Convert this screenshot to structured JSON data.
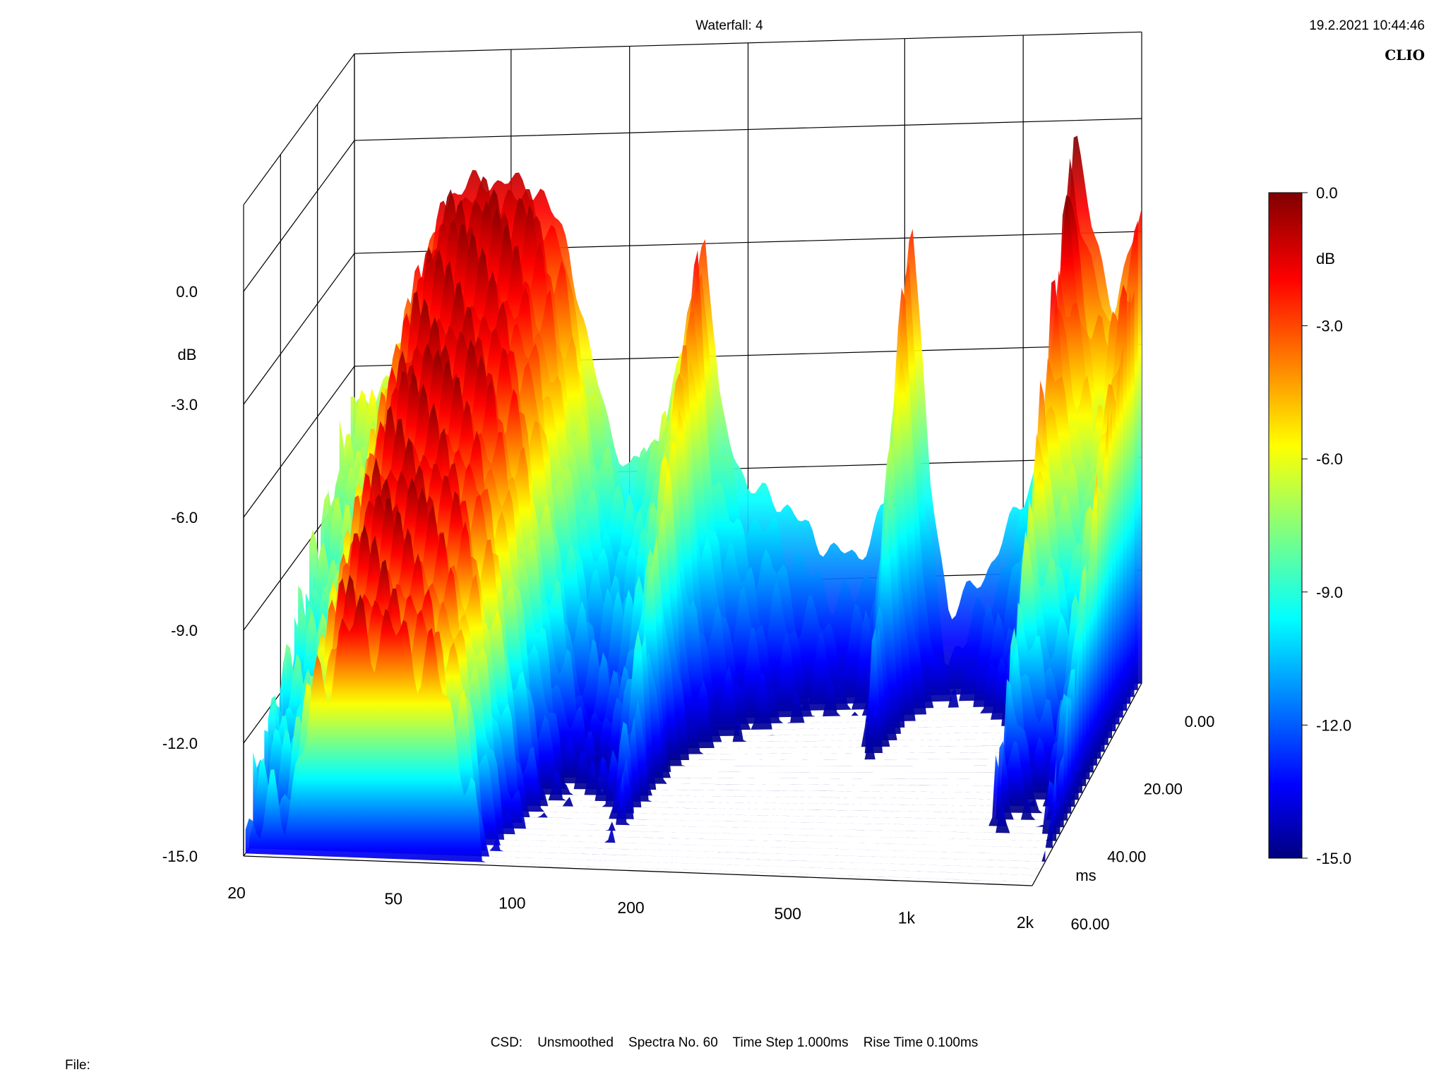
{
  "header": {
    "title": "Waterfall: 4",
    "datetime": "19.2.2021 10:44:46",
    "brand": "CLIO"
  },
  "footer": {
    "settings": "CSD:    Unsmoothed    Spectra No. 60    Time Step 1.000ms    Rise Time 0.100ms",
    "file_label": "File:"
  },
  "chart_data": {
    "type": "waterfall",
    "title": "Waterfall: 4",
    "z_axis": {
      "label": "dB",
      "range": [
        -15.0,
        0.0
      ],
      "ticks": [
        "0.0",
        "-3.0",
        "-6.0",
        "-9.0",
        "-12.0",
        "-15.0"
      ]
    },
    "x_axis": {
      "scale": "log",
      "range": [
        20,
        2000
      ],
      "ticks": [
        {
          "v": 20,
          "label": "20"
        },
        {
          "v": 50,
          "label": "50"
        },
        {
          "v": 100,
          "label": "100"
        },
        {
          "v": 200,
          "label": "200"
        },
        {
          "v": 500,
          "label": "500"
        },
        {
          "v": 1000,
          "label": "1k"
        },
        {
          "v": 2000,
          "label": "2k"
        }
      ]
    },
    "t_axis": {
      "label": "ms",
      "range": [
        0,
        60
      ],
      "ticks": [
        "0.00",
        "20.00",
        "40.00",
        "60.00"
      ]
    },
    "colorbar": {
      "label": "dB",
      "range": [
        -15.0,
        0.0
      ],
      "ticks": [
        "0.0",
        "-3.0",
        "-6.0",
        "-9.0",
        "-12.0",
        "-15.0"
      ],
      "colors": [
        "#000080",
        "#0000ff",
        "#00ffff",
        "#ffff00",
        "#ff0000",
        "#800000"
      ]
    },
    "spectra_count": 60,
    "time_step_ms": 1.0,
    "rise_time_ms": 0.1,
    "smoothing": "Unsmoothed",
    "first_spectrum_db": [
      {
        "f": 20,
        "db": -7.0
      },
      {
        "f": 25,
        "db": -6.5
      },
      {
        "f": 30,
        "db": -3.5
      },
      {
        "f": 35,
        "db": -1.5
      },
      {
        "f": 40,
        "db": -1.2
      },
      {
        "f": 50,
        "db": -1.2
      },
      {
        "f": 60,
        "db": -1.5
      },
      {
        "f": 70,
        "db": -3.0
      },
      {
        "f": 80,
        "db": -6.0
      },
      {
        "f": 90,
        "db": -8.0
      },
      {
        "f": 100,
        "db": -9.0
      },
      {
        "f": 120,
        "db": -8.0
      },
      {
        "f": 140,
        "db": -5.5
      },
      {
        "f": 155,
        "db": -2.5
      },
      {
        "f": 170,
        "db": -7.5
      },
      {
        "f": 200,
        "db": -9.5
      },
      {
        "f": 250,
        "db": -10.0
      },
      {
        "f": 300,
        "db": -11.0
      },
      {
        "f": 380,
        "db": -11.5
      },
      {
        "f": 450,
        "db": -10.0
      },
      {
        "f": 520,
        "db": -2.0
      },
      {
        "f": 580,
        "db": -9.5
      },
      {
        "f": 650,
        "db": -13.0
      },
      {
        "f": 800,
        "db": -12.0
      },
      {
        "f": 1000,
        "db": -10.0
      },
      {
        "f": 1200,
        "db": -8.0
      },
      {
        "f": 1350,
        "db": 0.0
      },
      {
        "f": 1500,
        "db": -3.0
      },
      {
        "f": 1700,
        "db": -5.0
      },
      {
        "f": 2000,
        "db": -2.5
      }
    ]
  }
}
